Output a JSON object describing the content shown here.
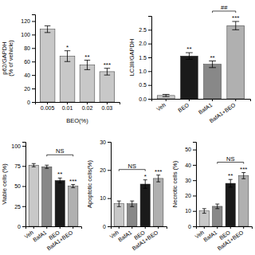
{
  "chart_data": [
    {
      "type": "bar",
      "categories": [
        "0.005",
        "0.01",
        "0.02",
        "0.03"
      ],
      "values": [
        108,
        68,
        55,
        45
      ],
      "errors": [
        5,
        8,
        7,
        5
      ],
      "color": "#c8c8c8",
      "ylabel": "p62/GAPDH\n(% of vehicle)",
      "xlabel": "BEO(%)",
      "ylim": [
        0,
        130
      ],
      "yticks": [
        0,
        20,
        40,
        60,
        80,
        100,
        120
      ],
      "annotations": [
        {
          "text": "*",
          "category": "0.01"
        },
        {
          "text": "**",
          "category": "0.02"
        },
        {
          "text": "***",
          "category": "0.03"
        }
      ]
    },
    {
      "type": "bar",
      "categories": [
        "Veh",
        "BEO",
        "BafA1",
        "BafA1+BEO"
      ],
      "values": [
        0.12,
        1.55,
        1.25,
        2.65
      ],
      "errors": [
        0.04,
        0.12,
        0.12,
        0.15
      ],
      "colors": [
        "#c8c8c8",
        "#1a1a1a",
        "#888888",
        "#b0b0b0"
      ],
      "ylabel": "LC3II/GAPDH",
      "ylim": [
        0,
        3.0
      ],
      "yticks": [
        {
          "value": 0,
          "label": "0.0"
        },
        0.5,
        {
          "value": 1,
          "label": "1.0"
        },
        1.5,
        {
          "value": 2,
          "label": "2.0"
        },
        2.5
      ],
      "annotations": [
        {
          "text": "**",
          "category": "BEO"
        },
        {
          "text": "**",
          "category": "BafA1"
        },
        {
          "text": "***",
          "category": "BafA1+BEO"
        },
        {
          "text": "##",
          "between": [
            "BafA1",
            "BafA1+BEO"
          ]
        }
      ]
    },
    {
      "type": "bar",
      "categories": [
        "Veh",
        "BafA1",
        "BEO",
        "BafA1+BEO"
      ],
      "values": [
        76,
        74,
        57,
        50
      ],
      "errors": [
        2,
        2,
        3,
        2
      ],
      "colors": [
        "#c8c8c8",
        "#888888",
        "#1a1a1a",
        "#b0b0b0"
      ],
      "ylabel": "Viable cells (%)",
      "ylim": [
        0,
        105
      ],
      "yticks": [
        0,
        25,
        50,
        75,
        100
      ],
      "annotations": [
        {
          "text": "**",
          "category": "BEO"
        },
        {
          "text": "***",
          "category": "BafA1+BEO"
        },
        {
          "text": "NS",
          "between": [
            "BafA1",
            "BafA1+BEO"
          ]
        }
      ]
    },
    {
      "type": "bar",
      "categories": [
        "Veh",
        "BafA1",
        "BEO",
        "BafA1+BEO"
      ],
      "values": [
        8,
        8,
        15,
        17
      ],
      "errors": [
        1,
        1,
        1.5,
        1.2
      ],
      "colors": [
        "#c8c8c8",
        "#888888",
        "#1a1a1a",
        "#b0b0b0"
      ],
      "ylabel": "Apoptotic cells(%)",
      "ylim": [
        0,
        30
      ],
      "yticks": [
        0,
        10,
        20,
        30
      ],
      "annotations": [
        {
          "text": "*",
          "category": "BEO"
        },
        {
          "text": "***",
          "category": "BafA1+BEO"
        },
        {
          "text": "NS",
          "between": [
            "Veh",
            "BEO"
          ]
        }
      ]
    },
    {
      "type": "bar",
      "categories": [
        "Veh",
        "BafA1",
        "BEO",
        "BafA1+BEO"
      ],
      "values": [
        10,
        13,
        28,
        33
      ],
      "errors": [
        1.5,
        1.5,
        2.5,
        2
      ],
      "colors": [
        "#c8c8c8",
        "#888888",
        "#1a1a1a",
        "#b0b0b0"
      ],
      "ylabel": "Necrotic cells (%)",
      "ylim": [
        0,
        55
      ],
      "yticks": [
        0,
        10,
        20,
        30,
        40,
        50
      ],
      "annotations": [
        {
          "text": "**",
          "category": "BEO"
        },
        {
          "text": "***",
          "category": "BafA1+BEO"
        },
        {
          "text": "NS",
          "between": [
            "BafA1",
            "BafA1+BEO"
          ]
        }
      ]
    }
  ]
}
